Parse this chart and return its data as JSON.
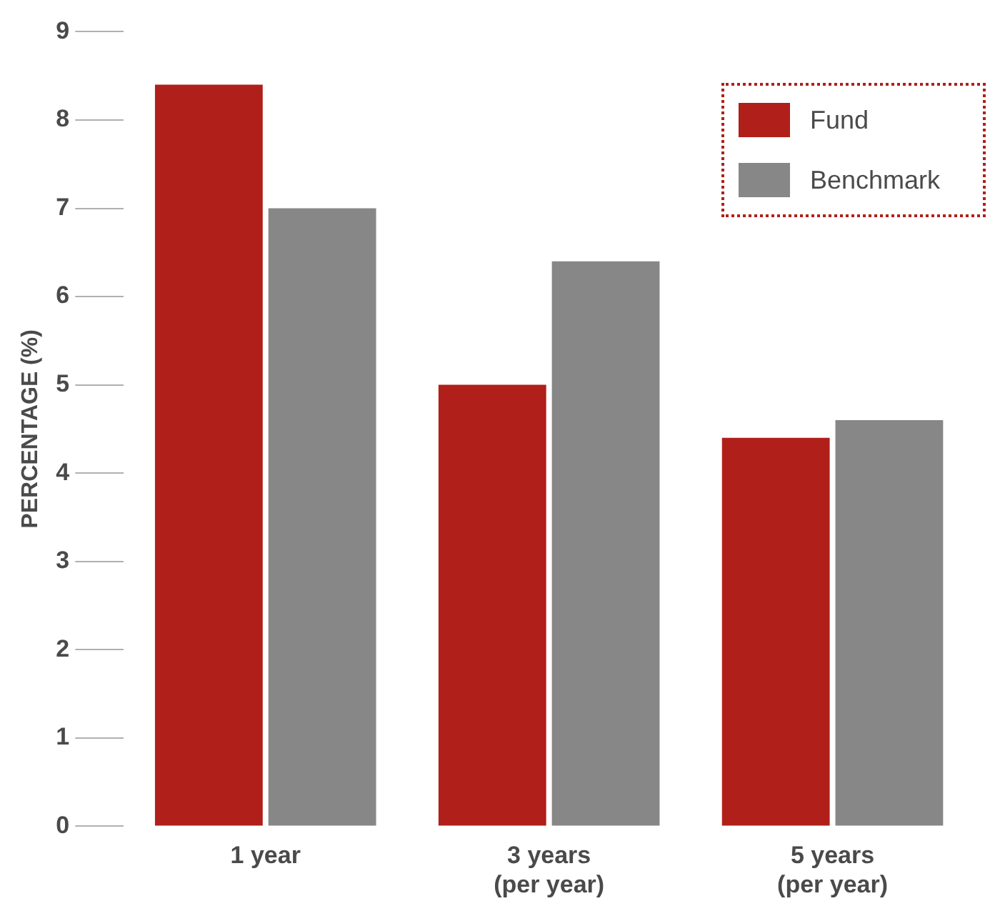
{
  "chart_data": {
    "type": "bar",
    "ylabel": "PERCENTAGE (%)",
    "categories": [
      "1 year",
      "3 years\n(per year)",
      "5 years\n(per year)"
    ],
    "series": [
      {
        "name": "Fund",
        "color": "#b01f1a",
        "values": [
          8.4,
          5.0,
          4.4
        ]
      },
      {
        "name": "Benchmark",
        "color": "#878787",
        "values": [
          7.0,
          6.4,
          4.6
        ]
      }
    ],
    "ylim": [
      0,
      9
    ],
    "yticks": [
      0,
      1,
      2,
      3,
      4,
      5,
      6,
      7,
      8,
      9
    ],
    "grid": false,
    "legend": "top right"
  }
}
